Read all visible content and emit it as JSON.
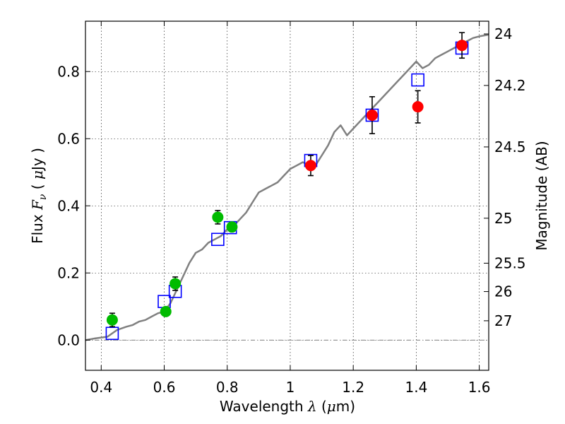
{
  "chart_data": {
    "type": "scatter",
    "title": "",
    "xlabel": {
      "pre": "Wavelength  ",
      "sym": "λ",
      "post": " (",
      "mu": "μ",
      "unit": "m)"
    },
    "ylabel": {
      "pre": "Flux  ",
      "sym": "F",
      "sub": "ν",
      "post": "  ( ",
      "mu": "μ",
      "unit": "Jy )"
    },
    "y2label": "Magnitude (AB)",
    "xlim": [
      0.35,
      1.63
    ],
    "ylim": [
      -0.09,
      0.95
    ],
    "grid": true,
    "x_ticks": [
      {
        "v": 0.4,
        "t": "0.4"
      },
      {
        "v": 0.6,
        "t": "0.6"
      },
      {
        "v": 0.8,
        "t": "0.8"
      },
      {
        "v": 1.0,
        "t": "1"
      },
      {
        "v": 1.2,
        "t": "1.2"
      },
      {
        "v": 1.4,
        "t": "1.4"
      },
      {
        "v": 1.6,
        "t": "1.6"
      }
    ],
    "y_ticks": [
      {
        "v": 0.0,
        "t": "0.0"
      },
      {
        "v": 0.2,
        "t": "0.2"
      },
      {
        "v": 0.4,
        "t": "0.4"
      },
      {
        "v": 0.6,
        "t": "0.6"
      },
      {
        "v": 0.8,
        "t": "0.8"
      }
    ],
    "y2_ticks": [
      {
        "mag": 24,
        "t": "24"
      },
      {
        "mag": 24.2,
        "t": "24.2"
      },
      {
        "mag": 24.5,
        "t": "24.5"
      },
      {
        "mag": 25,
        "t": "25"
      },
      {
        "mag": 25.5,
        "t": "25.5"
      },
      {
        "mag": 26,
        "t": "26"
      },
      {
        "mag": 27,
        "t": "27"
      }
    ],
    "zero_line": 0.0,
    "series": [
      {
        "kind": "spectrum",
        "color": "#808080",
        "points": [
          [
            0.35,
            0.0
          ],
          [
            0.38,
            0.005
          ],
          [
            0.42,
            0.01
          ],
          [
            0.45,
            0.03
          ],
          [
            0.48,
            0.04
          ],
          [
            0.5,
            0.045
          ],
          [
            0.52,
            0.055
          ],
          [
            0.54,
            0.06
          ],
          [
            0.56,
            0.07
          ],
          [
            0.58,
            0.08
          ],
          [
            0.6,
            0.085
          ],
          [
            0.62,
            0.11
          ],
          [
            0.64,
            0.15
          ],
          [
            0.66,
            0.19
          ],
          [
            0.68,
            0.23
          ],
          [
            0.7,
            0.26
          ],
          [
            0.72,
            0.27
          ],
          [
            0.74,
            0.29
          ],
          [
            0.76,
            0.3
          ],
          [
            0.78,
            0.31
          ],
          [
            0.8,
            0.33
          ],
          [
            0.82,
            0.34
          ],
          [
            0.84,
            0.36
          ],
          [
            0.86,
            0.38
          ],
          [
            0.88,
            0.41
          ],
          [
            0.9,
            0.44
          ],
          [
            0.92,
            0.45
          ],
          [
            0.94,
            0.46
          ],
          [
            0.96,
            0.47
          ],
          [
            0.98,
            0.49
          ],
          [
            1.0,
            0.51
          ],
          [
            1.02,
            0.52
          ],
          [
            1.04,
            0.53
          ],
          [
            1.06,
            0.52
          ],
          [
            1.08,
            0.52
          ],
          [
            1.1,
            0.55
          ],
          [
            1.12,
            0.58
          ],
          [
            1.14,
            0.62
          ],
          [
            1.16,
            0.64
          ],
          [
            1.18,
            0.61
          ],
          [
            1.2,
            0.63
          ],
          [
            1.22,
            0.65
          ],
          [
            1.24,
            0.67
          ],
          [
            1.26,
            0.69
          ],
          [
            1.28,
            0.71
          ],
          [
            1.3,
            0.73
          ],
          [
            1.32,
            0.75
          ],
          [
            1.34,
            0.77
          ],
          [
            1.36,
            0.79
          ],
          [
            1.38,
            0.81
          ],
          [
            1.4,
            0.83
          ],
          [
            1.42,
            0.81
          ],
          [
            1.44,
            0.82
          ],
          [
            1.46,
            0.84
          ],
          [
            1.48,
            0.85
          ],
          [
            1.5,
            0.86
          ],
          [
            1.52,
            0.87
          ],
          [
            1.54,
            0.88
          ],
          [
            1.56,
            0.89
          ],
          [
            1.58,
            0.9
          ],
          [
            1.6,
            0.905
          ],
          [
            1.63,
            0.91
          ]
        ]
      },
      {
        "kind": "model",
        "color": "#0000ff",
        "points": [
          [
            0.435,
            0.02
          ],
          [
            0.6,
            0.115
          ],
          [
            0.635,
            0.145
          ],
          [
            0.77,
            0.3
          ],
          [
            0.81,
            0.335
          ],
          [
            1.065,
            0.535
          ],
          [
            1.26,
            0.67
          ],
          [
            1.405,
            0.775
          ],
          [
            1.545,
            0.87
          ]
        ]
      },
      {
        "kind": "observed",
        "color": "#00bb00",
        "points": [
          {
            "x": 0.435,
            "y": 0.06,
            "err": 0.02
          },
          {
            "x": 0.605,
            "y": 0.085,
            "err": 0.0
          },
          {
            "x": 0.635,
            "y": 0.168,
            "err": 0.02
          },
          {
            "x": 0.77,
            "y": 0.366,
            "err": 0.02
          },
          {
            "x": 0.815,
            "y": 0.337,
            "err": 0.0
          }
        ]
      },
      {
        "kind": "observed",
        "color": "#ff0000",
        "points": [
          {
            "x": 1.065,
            "y": 0.52,
            "err": 0.03
          },
          {
            "x": 1.26,
            "y": 0.67,
            "err": 0.055
          },
          {
            "x": 1.405,
            "y": 0.695,
            "err": 0.048
          },
          {
            "x": 1.545,
            "y": 0.878,
            "err": 0.038
          }
        ]
      }
    ]
  }
}
